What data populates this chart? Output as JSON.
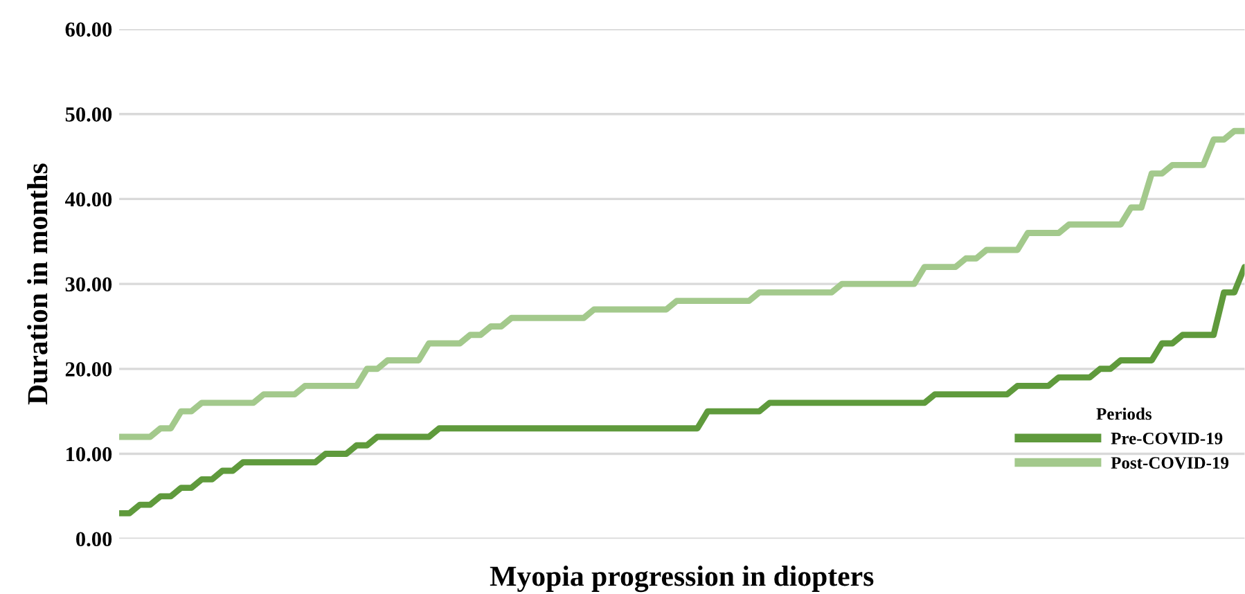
{
  "chart_data": {
    "type": "line",
    "xlabel": "Myopia progression in diopters",
    "ylabel": "Duration in months",
    "legend_title": "Periods",
    "categories": [
      null,
      null,
      null,
      null,
      null,
      null,
      null,
      null,
      null,
      null,
      null,
      null,
      null,
      null,
      null,
      null,
      null,
      null,
      null,
      null,
      null,
      null,
      null,
      null,
      null,
      null,
      null,
      null,
      null,
      null,
      null,
      null,
      null,
      null,
      null,
      null,
      null,
      null,
      null,
      null,
      null,
      null,
      null,
      null,
      null,
      null,
      null,
      null,
      null,
      null,
      null,
      null,
      null,
      null,
      null,
      null,
      null,
      null,
      null,
      null,
      null,
      null,
      null,
      null,
      null,
      null,
      null,
      null,
      null,
      null,
      null,
      null,
      null,
      null,
      null,
      null,
      null,
      null,
      null,
      null,
      null,
      null,
      null,
      null,
      null,
      null,
      null,
      null,
      null,
      null,
      null,
      null,
      null,
      null,
      null,
      null,
      null,
      null,
      null,
      null,
      null,
      null,
      null,
      null,
      null,
      null,
      null,
      null,
      null,
      null
    ],
    "series": [
      {
        "name": "Pre-COVID-19",
        "color": "#5f9a3c",
        "values": [
          3,
          3,
          4,
          4,
          5,
          5,
          6,
          6,
          7,
          7,
          8,
          8,
          9,
          9,
          9,
          9,
          9,
          9,
          9,
          9,
          10,
          10,
          10,
          11,
          11,
          12,
          12,
          12,
          12,
          12,
          12,
          13,
          13,
          13,
          13,
          13,
          13,
          13,
          13,
          13,
          13,
          13,
          13,
          13,
          13,
          13,
          13,
          13,
          13,
          13,
          13,
          13,
          13,
          13,
          13,
          13,
          13,
          15,
          15,
          15,
          15,
          15,
          15,
          16,
          16,
          16,
          16,
          16,
          16,
          16,
          16,
          16,
          16,
          16,
          16,
          16,
          16,
          16,
          16,
          17,
          17,
          17,
          17,
          17,
          17,
          17,
          17,
          18,
          18,
          18,
          18,
          19,
          19,
          19,
          19,
          20,
          20,
          21,
          21,
          21,
          21,
          23,
          23,
          24,
          24,
          24,
          24,
          29,
          29,
          32
        ]
      },
      {
        "name": "Post-COVID-19",
        "color": "#a3c98c",
        "values": [
          12,
          12,
          12,
          12,
          13,
          13,
          15,
          15,
          16,
          16,
          16,
          16,
          16,
          16,
          17,
          17,
          17,
          17,
          18,
          18,
          18,
          18,
          18,
          18,
          20,
          20,
          21,
          21,
          21,
          21,
          23,
          23,
          23,
          23,
          24,
          24,
          25,
          25,
          26,
          26,
          26,
          26,
          26,
          26,
          26,
          26,
          27,
          27,
          27,
          27,
          27,
          27,
          27,
          27,
          28,
          28,
          28,
          28,
          28,
          28,
          28,
          28,
          29,
          29,
          29,
          29,
          29,
          29,
          29,
          29,
          30,
          30,
          30,
          30,
          30,
          30,
          30,
          30,
          32,
          32,
          32,
          32,
          33,
          33,
          34,
          34,
          34,
          34,
          36,
          36,
          36,
          36,
          37,
          37,
          37,
          37,
          37,
          37,
          39,
          39,
          43,
          43,
          44,
          44,
          44,
          44,
          47,
          47,
          48,
          48
        ]
      }
    ],
    "ylim": [
      0,
      60
    ],
    "yticks": [
      {
        "value": 0,
        "label": "0.00"
      },
      {
        "value": 10,
        "label": "10.00"
      },
      {
        "value": 20,
        "label": "20.00"
      },
      {
        "value": 30,
        "label": "30.00"
      },
      {
        "value": 40,
        "label": "40.00"
      },
      {
        "value": 50,
        "label": "50.00"
      },
      {
        "value": 60,
        "label": "60.00"
      }
    ],
    "tick_labels": "y",
    "grid": "y",
    "legend": "bottom right",
    "marker": "none",
    "line_style": "solid"
  }
}
